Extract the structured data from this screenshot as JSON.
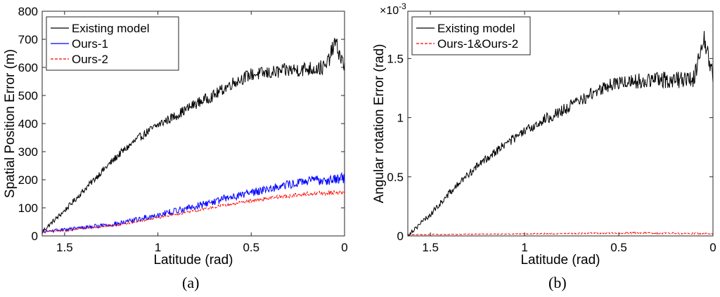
{
  "panels": [
    {
      "caption": "(a)"
    },
    {
      "caption": "(b)"
    }
  ],
  "chart_data": [
    {
      "type": "line",
      "xlabel": "Latitude (rad)",
      "ylabel": "Spatial Position Error (m)",
      "xlim": [
        1.62,
        0
      ],
      "ylim": [
        0,
        800
      ],
      "xticks": [
        1.5,
        1,
        0.5,
        0
      ],
      "xtick_labels": [
        "1.5",
        "1",
        "0.5",
        "0"
      ],
      "yticks": [
        0,
        100,
        200,
        300,
        400,
        500,
        600,
        700,
        800
      ],
      "ytick_labels": [
        "0",
        "100",
        "200",
        "300",
        "400",
        "500",
        "600",
        "700",
        "800"
      ],
      "exponent_label": "",
      "legend_position": "top-left",
      "series": [
        {
          "name": "Existing model",
          "color": "#000000",
          "dash": "solid",
          "x": [
            1.62,
            1.5,
            1.4,
            1.3,
            1.2,
            1.1,
            1.0,
            0.9,
            0.8,
            0.7,
            0.6,
            0.5,
            0.4,
            0.3,
            0.2,
            0.1,
            0.05,
            0.0
          ],
          "y": [
            15,
            90,
            160,
            230,
            295,
            350,
            395,
            430,
            470,
            500,
            545,
            575,
            580,
            590,
            595,
            600,
            690,
            600
          ],
          "noise": 30
        },
        {
          "name": "Ours-1",
          "color": "#0000ff",
          "dash": "solid",
          "x": [
            1.62,
            1.5,
            1.2,
            1.0,
            0.8,
            0.6,
            0.4,
            0.2,
            0.0
          ],
          "y": [
            15,
            22,
            45,
            75,
            105,
            140,
            170,
            195,
            205
          ],
          "noise": 20
        },
        {
          "name": "Ours-2",
          "color": "#ff0000",
          "dash": "dashed",
          "x": [
            1.62,
            1.5,
            1.2,
            1.0,
            0.8,
            0.6,
            0.4,
            0.2,
            0.0
          ],
          "y": [
            15,
            20,
            40,
            65,
            90,
            115,
            135,
            150,
            155
          ],
          "noise": 8
        }
      ]
    },
    {
      "type": "line",
      "xlabel": "Latitude (rad)",
      "ylabel": "Angular rotation Error (rad)",
      "xlim": [
        1.62,
        0
      ],
      "ylim": [
        0,
        0.0019
      ],
      "xticks": [
        1.5,
        1,
        0.5,
        0
      ],
      "xtick_labels": [
        "1.5",
        "1",
        "0.5",
        "0"
      ],
      "yticks": [
        0,
        0.0005,
        0.001,
        0.0015
      ],
      "ytick_labels": [
        "0",
        "0.5",
        "1",
        "1.5"
      ],
      "exponent_label": "×10-3",
      "legend_position": "top-left",
      "series": [
        {
          "name": "Existing model",
          "color": "#000000",
          "dash": "solid",
          "x": [
            1.62,
            1.5,
            1.4,
            1.3,
            1.2,
            1.1,
            1.0,
            0.9,
            0.8,
            0.7,
            0.6,
            0.5,
            0.4,
            0.3,
            0.2,
            0.1,
            0.05,
            0.0
          ],
          "y": [
            1e-05,
            0.00018,
            0.00036,
            0.00052,
            0.00066,
            0.00078,
            0.00088,
            0.00098,
            0.00106,
            0.00115,
            0.00124,
            0.0013,
            0.00131,
            0.00132,
            0.00132,
            0.00133,
            0.0017,
            0.00135
          ],
          "noise": 8e-05
        },
        {
          "name": "Ours-1&Ours-2",
          "color": "#ff0000",
          "dash": "dashed",
          "x": [
            1.62,
            1.2,
            0.8,
            0.4,
            0.0
          ],
          "y": [
            1e-05,
            1.5e-05,
            2e-05,
            2.5e-05,
            2e-05
          ],
          "noise": 8e-06
        }
      ]
    }
  ]
}
